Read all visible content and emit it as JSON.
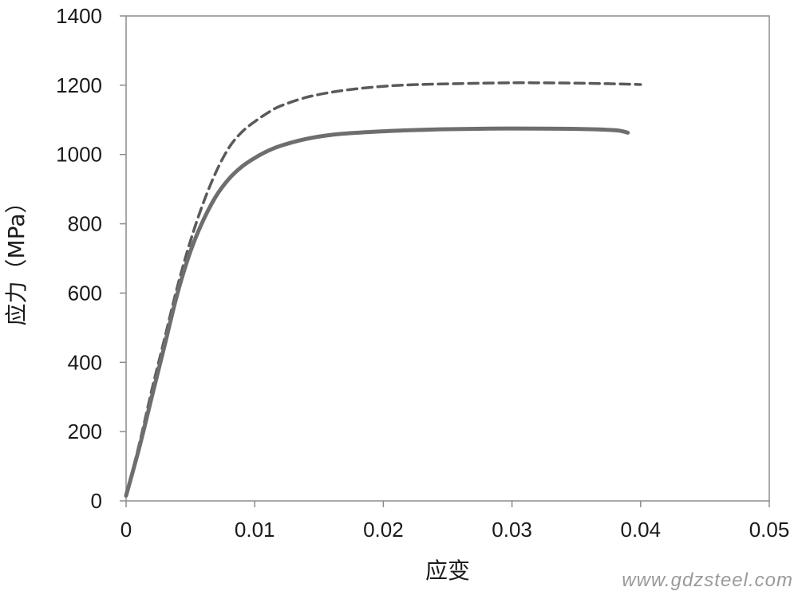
{
  "chart_data": {
    "type": "line",
    "title": "",
    "xlabel": "应变",
    "ylabel": "应力（MPa）",
    "xlim": [
      0,
      0.05
    ],
    "ylim": [
      0,
      1400
    ],
    "x_ticks": [
      "0",
      "0.01",
      "0.02",
      "0.03",
      "0.04",
      "0.05"
    ],
    "y_ticks": [
      "0",
      "200",
      "400",
      "600",
      "800",
      "1000",
      "1200",
      "1400"
    ],
    "grid": false,
    "legend": "none",
    "series": [
      {
        "style": "dashed",
        "color": "#5a5a5a",
        "points": [
          [
            0,
            15
          ],
          [
            0.001,
            160
          ],
          [
            0.002,
            320
          ],
          [
            0.003,
            470
          ],
          [
            0.004,
            620
          ],
          [
            0.005,
            750
          ],
          [
            0.006,
            860
          ],
          [
            0.007,
            950
          ],
          [
            0.008,
            1020
          ],
          [
            0.009,
            1065
          ],
          [
            0.01,
            1095
          ],
          [
            0.011,
            1120
          ],
          [
            0.012,
            1140
          ],
          [
            0.014,
            1165
          ],
          [
            0.016,
            1180
          ],
          [
            0.018,
            1190
          ],
          [
            0.02,
            1197
          ],
          [
            0.022,
            1201
          ],
          [
            0.025,
            1204
          ],
          [
            0.03,
            1207
          ],
          [
            0.035,
            1206
          ],
          [
            0.038,
            1204
          ],
          [
            0.04,
            1202
          ]
        ]
      },
      {
        "style": "solid",
        "color": "#6e6e6e",
        "points": [
          [
            0,
            15
          ],
          [
            0.001,
            150
          ],
          [
            0.002,
            300
          ],
          [
            0.003,
            450
          ],
          [
            0.004,
            600
          ],
          [
            0.005,
            720
          ],
          [
            0.006,
            810
          ],
          [
            0.007,
            880
          ],
          [
            0.008,
            930
          ],
          [
            0.009,
            965
          ],
          [
            0.01,
            990
          ],
          [
            0.011,
            1010
          ],
          [
            0.012,
            1025
          ],
          [
            0.014,
            1045
          ],
          [
            0.016,
            1057
          ],
          [
            0.018,
            1063
          ],
          [
            0.02,
            1067
          ],
          [
            0.022,
            1070
          ],
          [
            0.025,
            1073
          ],
          [
            0.03,
            1075
          ],
          [
            0.035,
            1074
          ],
          [
            0.038,
            1070
          ],
          [
            0.039,
            1063
          ]
        ]
      }
    ]
  },
  "watermark": "www.gdzsteel.com"
}
